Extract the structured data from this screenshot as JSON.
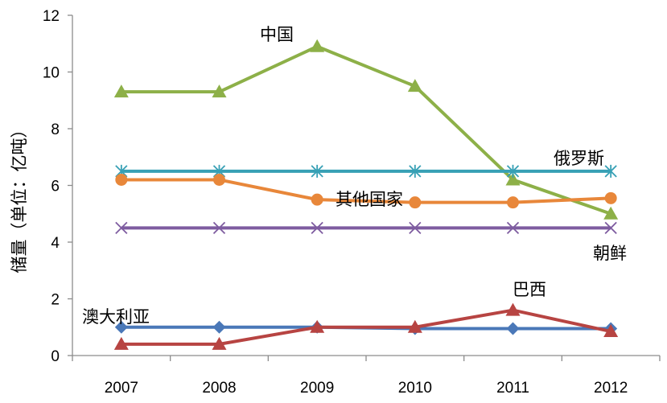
{
  "chart_data": {
    "type": "line",
    "title": "",
    "xlabel": "",
    "ylabel": "储量（单位：亿吨）",
    "ylim": [
      0,
      12
    ],
    "yticks": [
      "0",
      "2",
      "4",
      "6",
      "8",
      "10",
      "12"
    ],
    "categories": [
      "2007",
      "2008",
      "2009",
      "2010",
      "2011",
      "2012"
    ],
    "grid": false,
    "legend": "none",
    "series": [
      {
        "name": "中国",
        "color": "#8DB048",
        "marker": "triangle",
        "values": [
          9.3,
          9.3,
          10.9,
          9.5,
          6.2,
          5.0
        ]
      },
      {
        "name": "俄罗斯",
        "color": "#37A0B5",
        "marker": "asterisk",
        "values": [
          6.5,
          6.5,
          6.5,
          6.5,
          6.5,
          6.5
        ]
      },
      {
        "name": "其他国家",
        "color": "#E8873A",
        "marker": "circle",
        "values": [
          6.2,
          6.2,
          5.5,
          5.4,
          5.4,
          5.55
        ]
      },
      {
        "name": "朝鲜",
        "color": "#7E5CA0",
        "marker": "x",
        "values": [
          4.5,
          4.5,
          4.5,
          4.5,
          4.5,
          4.5
        ]
      },
      {
        "name": "澳大利亚",
        "color": "#4A78B8",
        "marker": "diamond",
        "values": [
          1.0,
          1.0,
          1.0,
          0.95,
          0.95,
          0.95
        ]
      },
      {
        "name": "巴西",
        "color": "#B74442",
        "marker": "triangle",
        "values": [
          0.4,
          0.4,
          1.0,
          1.0,
          1.6,
          0.85
        ]
      }
    ]
  }
}
